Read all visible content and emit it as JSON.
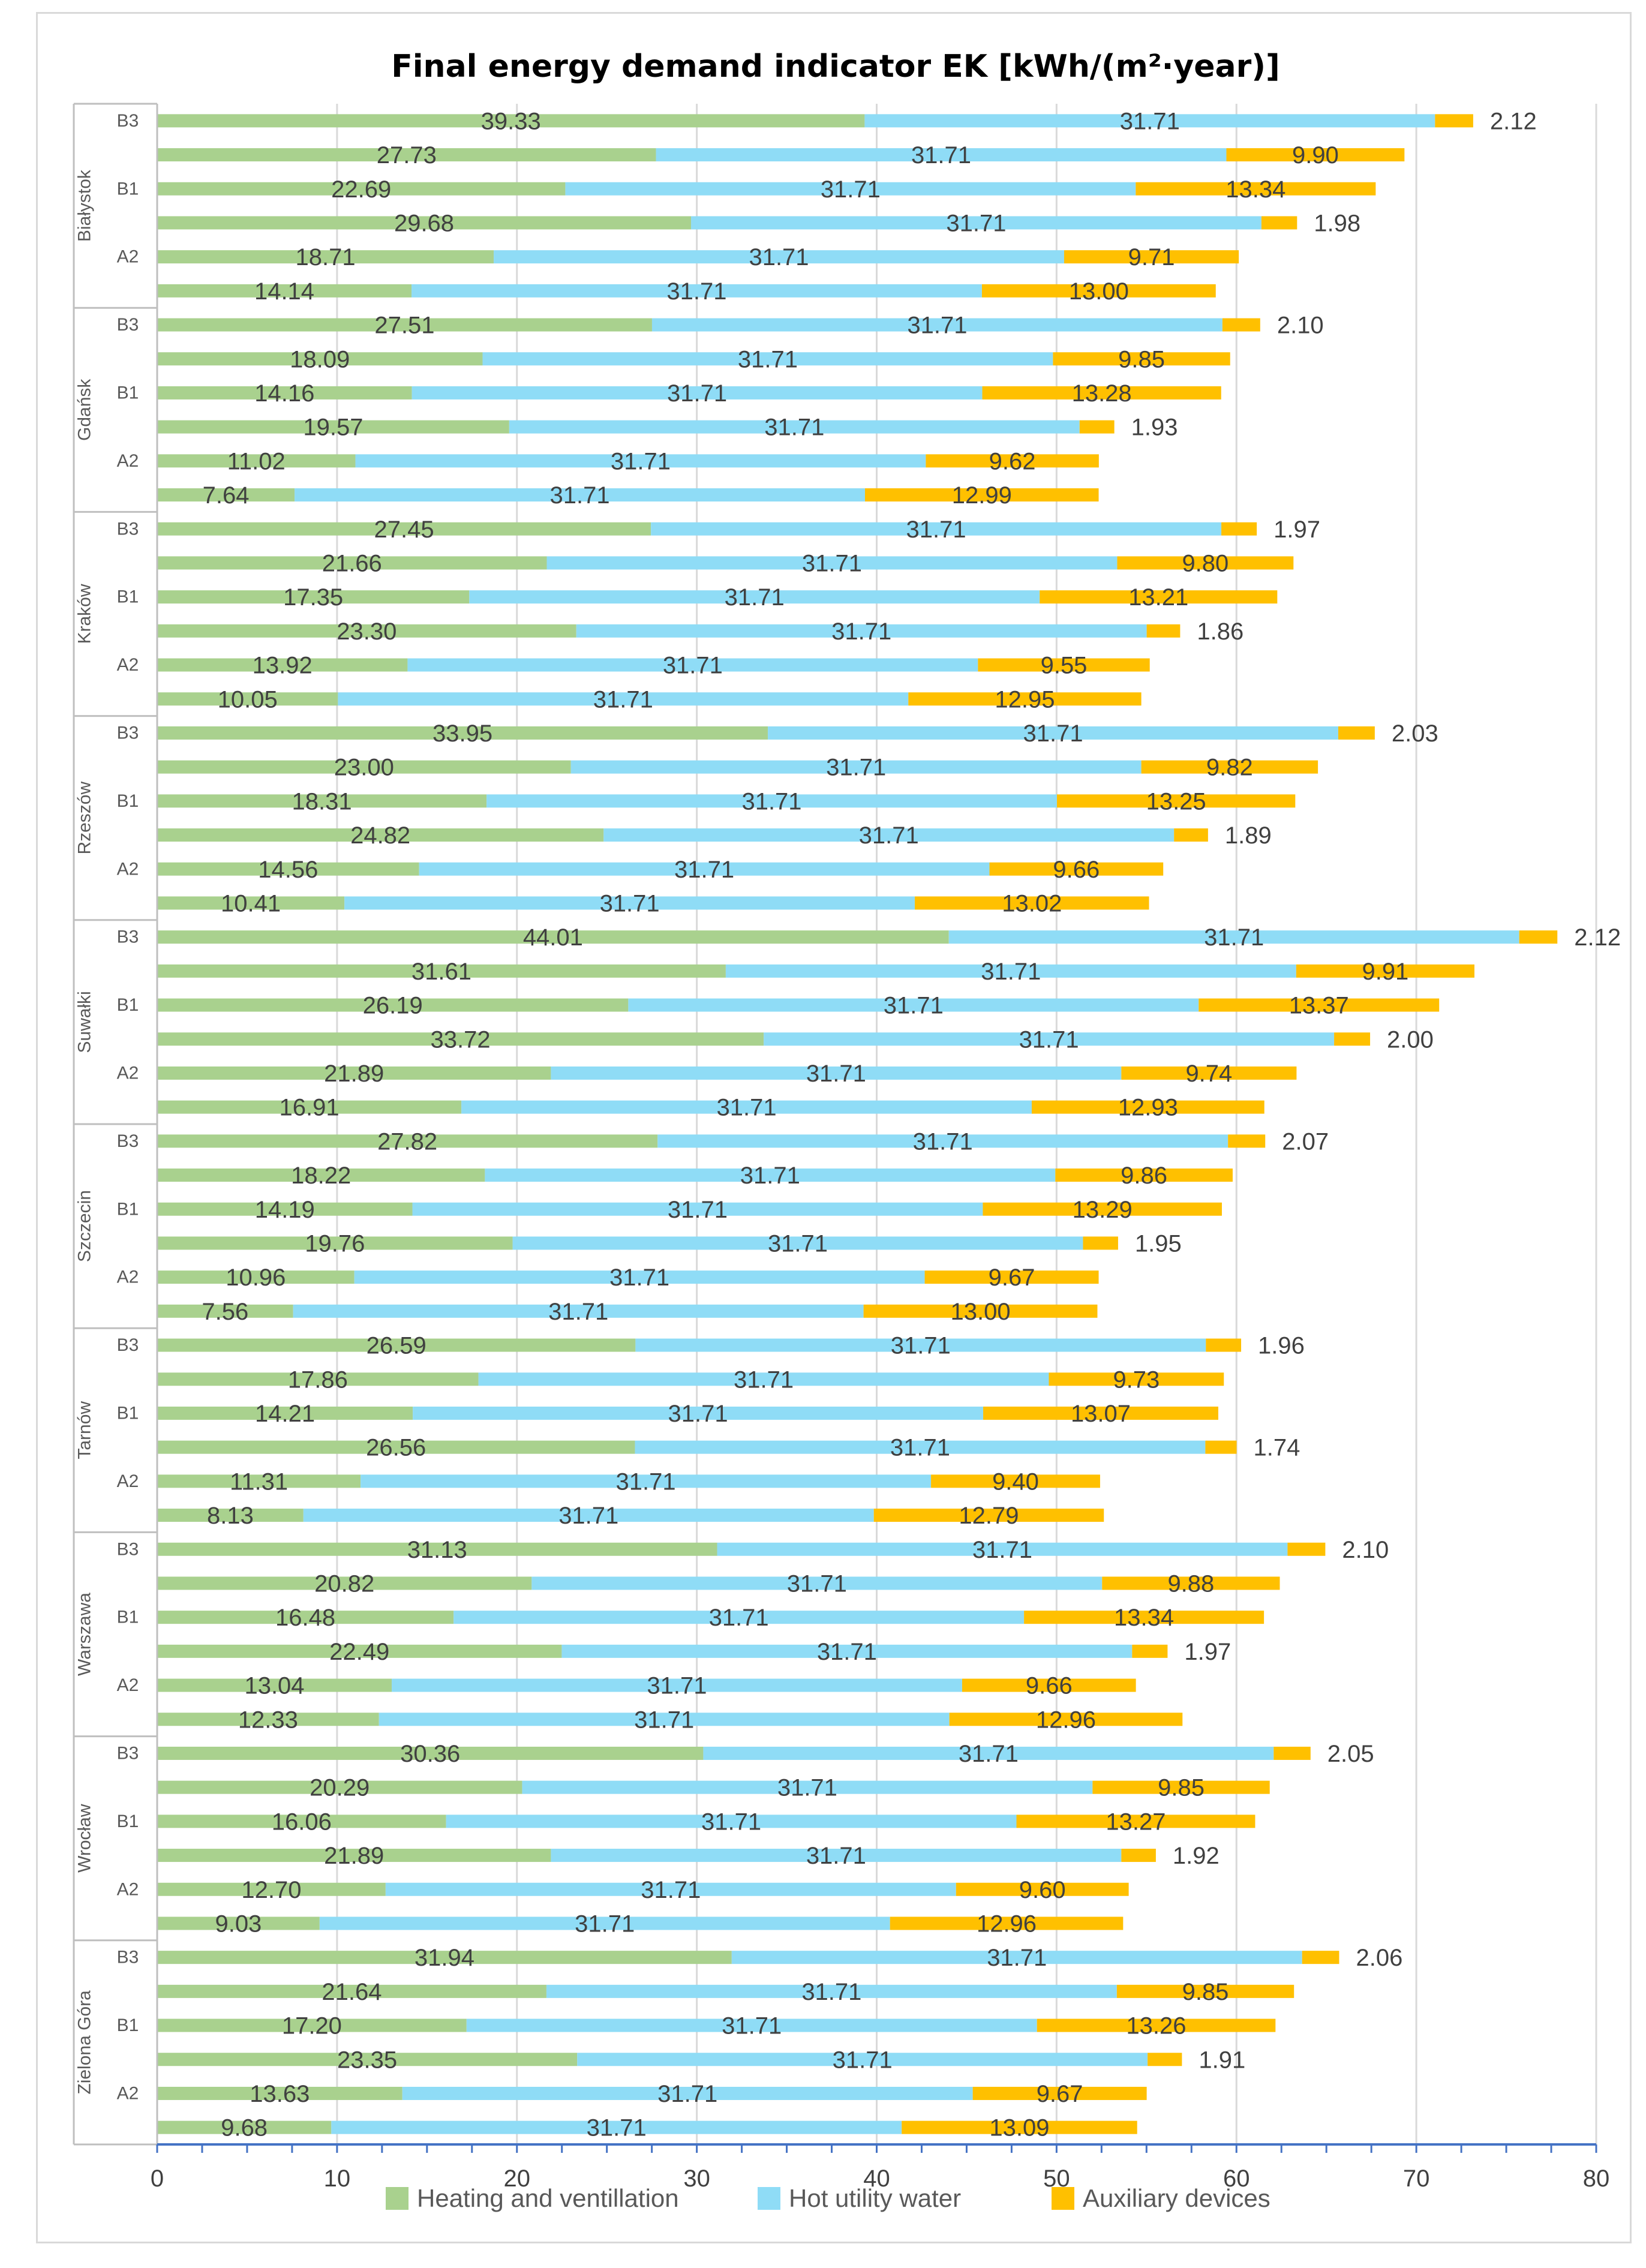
{
  "chart_data": {
    "type": "bar",
    "orientation": "horizontal",
    "stacked": true,
    "title": "Final energy demand indicator EK [kWh/(m²·year)]",
    "xlim": [
      0,
      80
    ],
    "x_ticks": [
      "0",
      "10",
      "20",
      "30",
      "40",
      "50",
      "60",
      "70",
      "80"
    ],
    "grid": "vertical",
    "legend_position": "bottom",
    "colors": {
      "heating": "#a9d18e",
      "water": "#8fdcf6",
      "aux": "#ffc000",
      "axis": "#4472c4",
      "grid": "#d9d9d9"
    },
    "legend": [
      "Heating and ventillation",
      "Hot utility water",
      "Auxiliary devices"
    ],
    "groups": [
      {
        "city": "Białystok",
        "tick_labels": [
          "B3",
          "B1",
          "A2"
        ],
        "bars": [
          {
            "heating": 39.33,
            "water": 31.71,
            "aux": 2.12
          },
          {
            "heating": 27.73,
            "water": 31.71,
            "aux": 9.9
          },
          {
            "heating": 22.69,
            "water": 31.71,
            "aux": 13.34
          },
          {
            "heating": 29.68,
            "water": 31.71,
            "aux": 1.98
          },
          {
            "heating": 18.71,
            "water": 31.71,
            "aux": 9.71
          },
          {
            "heating": 14.14,
            "water": 31.71,
            "aux": 13.0
          }
        ]
      },
      {
        "city": "Gdańsk",
        "tick_labels": [
          "B3",
          "B1",
          "A2"
        ],
        "bars": [
          {
            "heating": 27.51,
            "water": 31.71,
            "aux": 2.1
          },
          {
            "heating": 18.09,
            "water": 31.71,
            "aux": 9.85
          },
          {
            "heating": 14.16,
            "water": 31.71,
            "aux": 13.28
          },
          {
            "heating": 19.57,
            "water": 31.71,
            "aux": 1.93
          },
          {
            "heating": 11.02,
            "water": 31.71,
            "aux": 9.62
          },
          {
            "heating": 7.64,
            "water": 31.71,
            "aux": 12.99
          }
        ]
      },
      {
        "city": "Kraków",
        "tick_labels": [
          "B3",
          "B1",
          "A2"
        ],
        "bars": [
          {
            "heating": 27.45,
            "water": 31.71,
            "aux": 1.97
          },
          {
            "heating": 21.66,
            "water": 31.71,
            "aux": 9.8
          },
          {
            "heating": 17.35,
            "water": 31.71,
            "aux": 13.21
          },
          {
            "heating": 23.3,
            "water": 31.71,
            "aux": 1.86
          },
          {
            "heating": 13.92,
            "water": 31.71,
            "aux": 9.55
          },
          {
            "heating": 10.05,
            "water": 31.71,
            "aux": 12.95
          }
        ]
      },
      {
        "city": "Rzeszów",
        "tick_labels": [
          "B3",
          "B1",
          "A2"
        ],
        "bars": [
          {
            "heating": 33.95,
            "water": 31.71,
            "aux": 2.03
          },
          {
            "heating": 23.0,
            "water": 31.71,
            "aux": 9.82
          },
          {
            "heating": 18.31,
            "water": 31.71,
            "aux": 13.25
          },
          {
            "heating": 24.82,
            "water": 31.71,
            "aux": 1.89
          },
          {
            "heating": 14.56,
            "water": 31.71,
            "aux": 9.66
          },
          {
            "heating": 10.41,
            "water": 31.71,
            "aux": 13.02
          }
        ]
      },
      {
        "city": "Suwałki",
        "tick_labels": [
          "B3",
          "B1",
          "A2"
        ],
        "bars": [
          {
            "heating": 44.01,
            "water": 31.71,
            "aux": 2.12
          },
          {
            "heating": 31.61,
            "water": 31.71,
            "aux": 9.91
          },
          {
            "heating": 26.19,
            "water": 31.71,
            "aux": 13.37
          },
          {
            "heating": 33.72,
            "water": 31.71,
            "aux": 2.0
          },
          {
            "heating": 21.89,
            "water": 31.71,
            "aux": 9.74
          },
          {
            "heating": 16.91,
            "water": 31.71,
            "aux": 12.93
          }
        ]
      },
      {
        "city": "Szczecin",
        "tick_labels": [
          "B3",
          "B1",
          "A2"
        ],
        "bars": [
          {
            "heating": 27.82,
            "water": 31.71,
            "aux": 2.07
          },
          {
            "heating": 18.22,
            "water": 31.71,
            "aux": 9.86
          },
          {
            "heating": 14.19,
            "water": 31.71,
            "aux": 13.29
          },
          {
            "heating": 19.76,
            "water": 31.71,
            "aux": 1.95
          },
          {
            "heating": 10.96,
            "water": 31.71,
            "aux": 9.67
          },
          {
            "heating": 7.56,
            "water": 31.71,
            "aux": 13.0
          }
        ]
      },
      {
        "city": "Tarnów",
        "tick_labels": [
          "B3",
          "B1",
          "A2"
        ],
        "bars": [
          {
            "heating": 26.59,
            "water": 31.71,
            "aux": 1.96
          },
          {
            "heating": 17.86,
            "water": 31.71,
            "aux": 9.73
          },
          {
            "heating": 14.21,
            "water": 31.71,
            "aux": 13.07
          },
          {
            "heating": 26.56,
            "water": 31.71,
            "aux": 1.74
          },
          {
            "heating": 11.31,
            "water": 31.71,
            "aux": 9.4
          },
          {
            "heating": 8.13,
            "water": 31.71,
            "aux": 12.79
          }
        ]
      },
      {
        "city": "Warszawa",
        "tick_labels": [
          "B3",
          "B1",
          "A2"
        ],
        "bars": [
          {
            "heating": 31.13,
            "water": 31.71,
            "aux": 2.1
          },
          {
            "heating": 20.82,
            "water": 31.71,
            "aux": 9.88
          },
          {
            "heating": 16.48,
            "water": 31.71,
            "aux": 13.34
          },
          {
            "heating": 22.49,
            "water": 31.71,
            "aux": 1.97
          },
          {
            "heating": 13.04,
            "water": 31.71,
            "aux": 9.66
          },
          {
            "heating": 12.33,
            "water": 31.71,
            "aux": 12.96
          }
        ]
      },
      {
        "city": "Wrocław",
        "tick_labels": [
          "B3",
          "B1",
          "A2"
        ],
        "bars": [
          {
            "heating": 30.36,
            "water": 31.71,
            "aux": 2.05
          },
          {
            "heating": 20.29,
            "water": 31.71,
            "aux": 9.85
          },
          {
            "heating": 16.06,
            "water": 31.71,
            "aux": 13.27
          },
          {
            "heating": 21.89,
            "water": 31.71,
            "aux": 1.92
          },
          {
            "heating": 12.7,
            "water": 31.71,
            "aux": 9.6
          },
          {
            "heating": 9.03,
            "water": 31.71,
            "aux": 12.96
          }
        ]
      },
      {
        "city": "Zielona Góra",
        "tick_labels": [
          "B3",
          "B1",
          "A2"
        ],
        "bars": [
          {
            "heating": 31.94,
            "water": 31.71,
            "aux": 2.06
          },
          {
            "heating": 21.64,
            "water": 31.71,
            "aux": 9.85
          },
          {
            "heating": 17.2,
            "water": 31.71,
            "aux": 13.26
          },
          {
            "heating": 23.35,
            "water": 31.71,
            "aux": 1.91
          },
          {
            "heating": 13.63,
            "water": 31.71,
            "aux": 9.67
          },
          {
            "heating": 9.68,
            "water": 31.71,
            "aux": 13.09
          }
        ]
      }
    ]
  }
}
